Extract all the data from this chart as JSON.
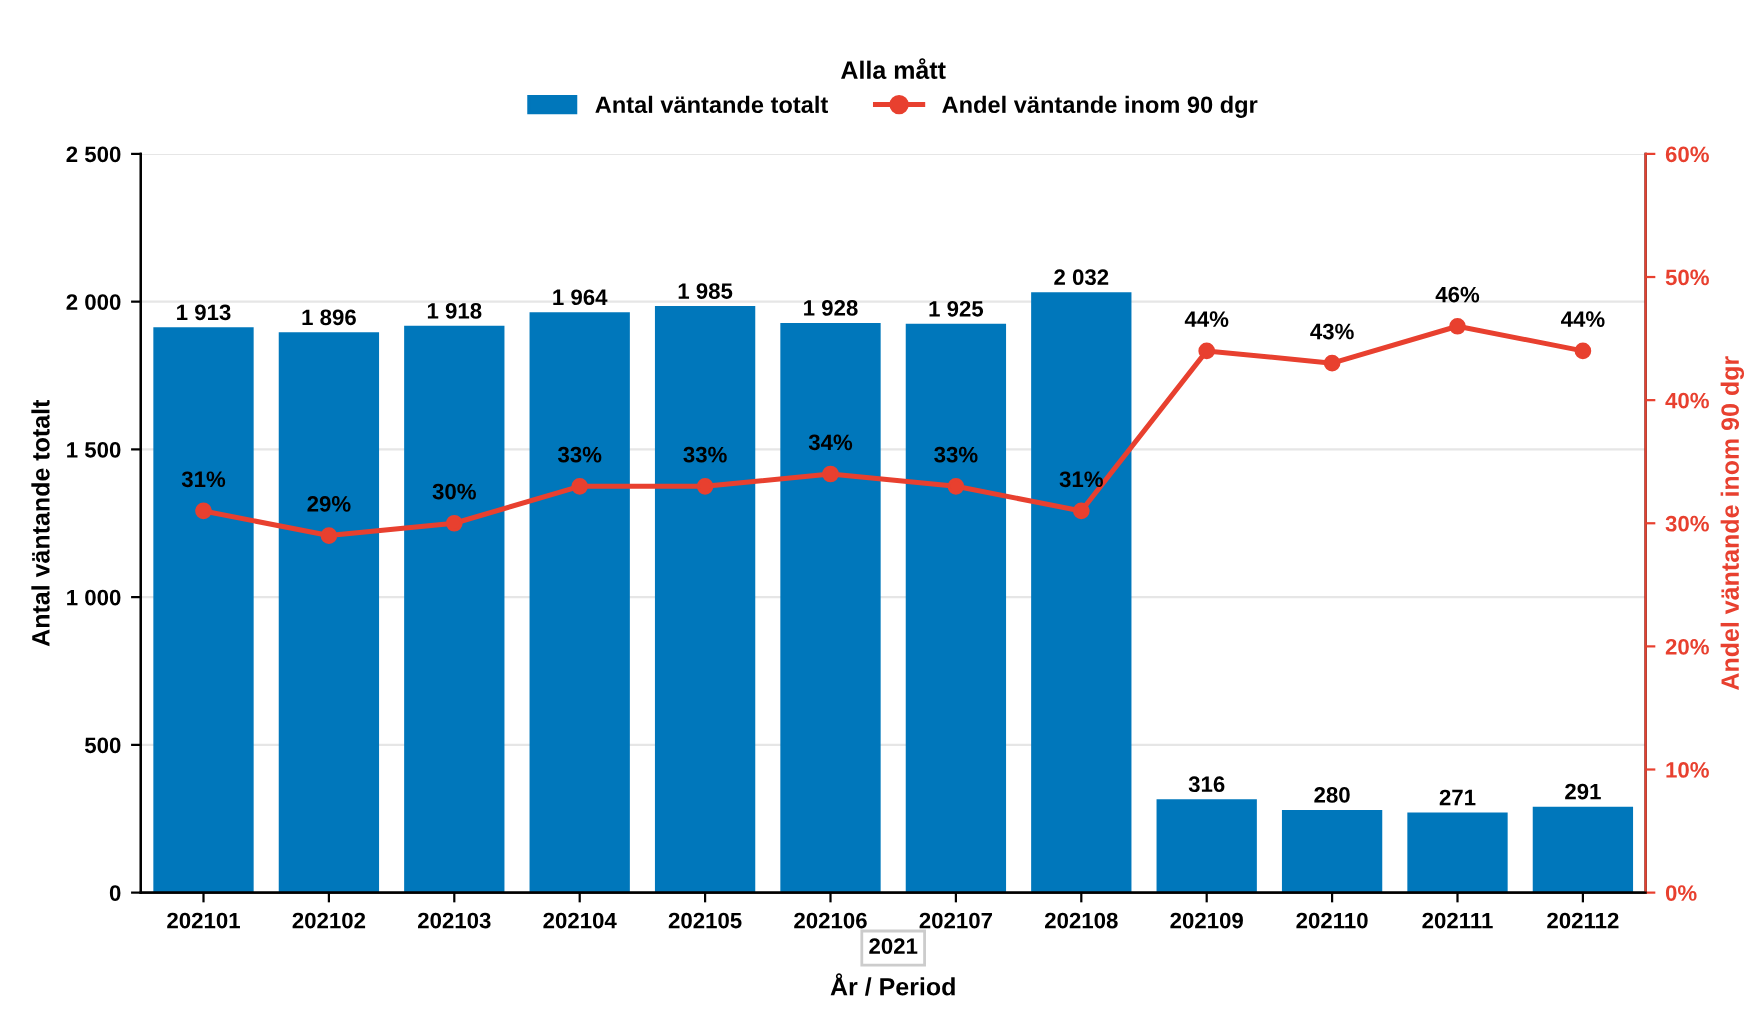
{
  "chart_data": {
    "type": "bar",
    "legend_title": "Alla mått",
    "xlabel": "År / Period",
    "ylabel": "Antal väntande totalt",
    "y2label": "Andel väntande inom 90 dgr",
    "categories": [
      "202101",
      "202102",
      "202103",
      "202104",
      "202105",
      "202106",
      "202107",
      "202108",
      "202109",
      "202110",
      "202111",
      "202112"
    ],
    "series": [
      {
        "name": "Antal väntande totalt",
        "color": "#0077bb",
        "values": [
          1913,
          1896,
          1918,
          1964,
          1985,
          1928,
          1925,
          2032,
          316,
          280,
          271,
          291
        ],
        "value_labels": [
          "1 913",
          "1 896",
          "1 918",
          "1 964",
          "1 985",
          "1 928",
          "1 925",
          "2 032",
          "316",
          "280",
          "271",
          "291"
        ]
      },
      {
        "name": "Andel väntande inom 90 dgr",
        "type": "line",
        "axis": "y2",
        "color": "#e8402f",
        "marker": "circle",
        "values": [
          31,
          29,
          30,
          33,
          33,
          34,
          33,
          31,
          44,
          43,
          46,
          44
        ],
        "value_labels": [
          "31%",
          "29%",
          "30%",
          "33%",
          "33%",
          "34%",
          "33%",
          "31%",
          "44%",
          "43%",
          "46%",
          "44%"
        ]
      }
    ],
    "ylim": [
      0,
      2500
    ],
    "yticks": [
      0,
      500,
      {
        "value": 1000,
        "label": "1 000"
      },
      {
        "value": 1500,
        "label": "1 500"
      },
      {
        "value": 2000,
        "label": "2 000"
      },
      {
        "value": 2500,
        "label": "2 500"
      }
    ],
    "y2lim": [
      0,
      60
    ],
    "y2ticks": [
      {
        "value": 0,
        "label": "0%"
      },
      {
        "value": 10,
        "label": "10%"
      },
      {
        "value": 20,
        "label": "20%"
      },
      {
        "value": 30,
        "label": "30%"
      },
      {
        "value": 40,
        "label": "40%"
      },
      {
        "value": 50,
        "label": "50%"
      },
      {
        "value": 60,
        "label": "60%"
      }
    ],
    "annotations": [
      "2021"
    ],
    "grid": "y",
    "legend": "top"
  }
}
